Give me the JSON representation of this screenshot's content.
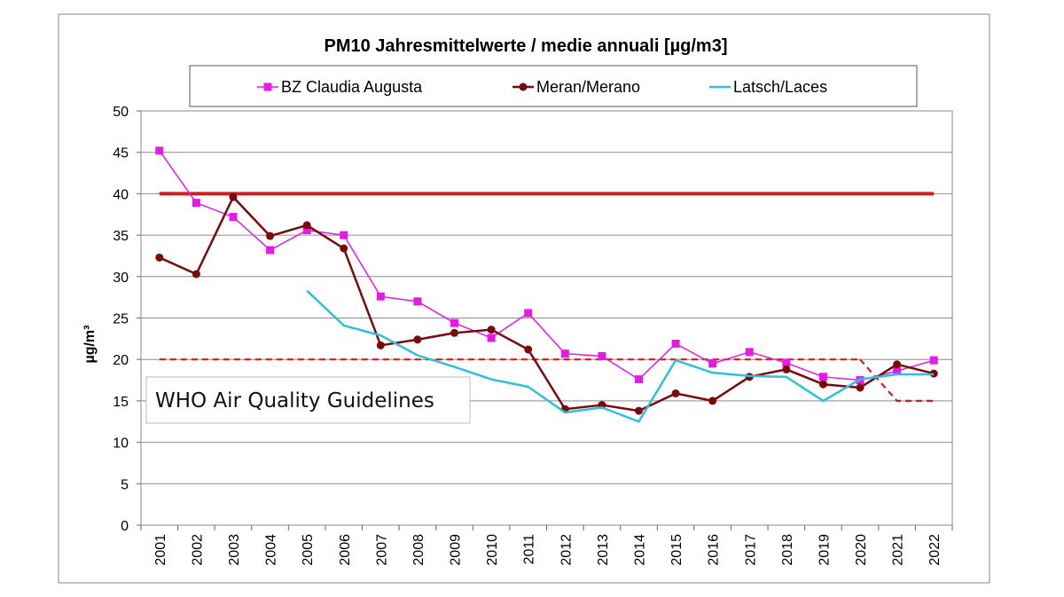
{
  "chart_data": {
    "type": "line",
    "title": "PM10 Jahresmittelwerte / medie annuali [µg/m3]",
    "xlabel": "",
    "ylabel": "µg/m³",
    "ylim": [
      0,
      50
    ],
    "yticks": [
      0,
      5,
      10,
      15,
      20,
      25,
      30,
      35,
      40,
      45,
      50
    ],
    "grid": "horizontal",
    "legend": "top",
    "categories": [
      "2001",
      "2002",
      "2003",
      "2004",
      "2005",
      "2006",
      "2007",
      "2008",
      "2009",
      "2010",
      "2011",
      "2012",
      "2013",
      "2014",
      "2015",
      "2016",
      "2017",
      "2018",
      "2019",
      "2020",
      "2021",
      "2022"
    ],
    "series": [
      {
        "name": "BZ Claudia Augusta",
        "color": "#e619e6",
        "marker": "square",
        "values": [
          45.2,
          38.9,
          37.2,
          33.2,
          35.6,
          35.0,
          27.6,
          27.0,
          24.4,
          22.6,
          25.6,
          20.7,
          20.4,
          17.6,
          21.9,
          19.5,
          20.9,
          19.6,
          17.9,
          17.5,
          18.6,
          19.9
        ]
      },
      {
        "name": "Meran/Merano",
        "color": "#7a0a0a",
        "marker": "circle",
        "values": [
          32.3,
          30.3,
          39.6,
          34.9,
          36.2,
          33.4,
          21.7,
          22.4,
          23.2,
          23.6,
          21.2,
          14.0,
          14.5,
          13.8,
          15.9,
          15.0,
          17.9,
          18.8,
          17.0,
          16.6,
          19.4,
          18.3
        ]
      },
      {
        "name": "Latsch/Laces",
        "color": "#2fc0db",
        "marker": "none",
        "values": [
          null,
          null,
          null,
          null,
          28.3,
          24.1,
          22.9,
          20.5,
          19.1,
          17.6,
          16.7,
          13.6,
          14.2,
          12.5,
          19.9,
          18.4,
          18.0,
          17.9,
          15.0,
          17.6,
          18.2,
          18.2
        ]
      }
    ],
    "reference_lines": [
      {
        "color": "#d01c1c",
        "style": "solid",
        "x": [
          "2001",
          "2022"
        ],
        "values": [
          40,
          40
        ]
      },
      {
        "color": "#d01c1c",
        "style": "dashed",
        "x": [
          "2001",
          "2020"
        ],
        "values": [
          20,
          20
        ]
      },
      {
        "color": "#d01c1c",
        "style": "dashed",
        "x": [
          "2020",
          "2021",
          "2022"
        ],
        "values": [
          20,
          15,
          15
        ]
      }
    ],
    "annotation": "WHO Air Quality Guidelines"
  }
}
